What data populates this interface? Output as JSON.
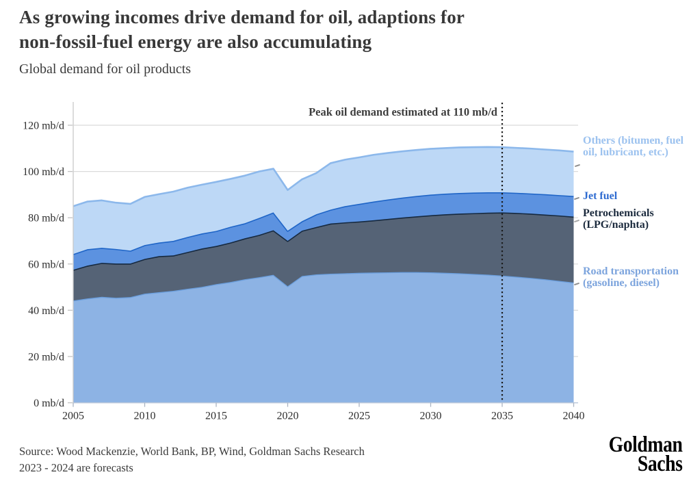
{
  "header": {
    "title": "As growing incomes drive demand for oil, adaptions for non-fossil-fuel energy are also accumulating"
  },
  "chart_data": {
    "type": "area",
    "stacked": true,
    "title": "Global demand for oil products",
    "unit": "mb/d",
    "xlabel": "",
    "ylabel": "mb/d",
    "ylim": [
      0,
      130
    ],
    "grid": true,
    "legend_position": "right",
    "x": [
      2005,
      2006,
      2007,
      2008,
      2009,
      2010,
      2011,
      2012,
      2013,
      2014,
      2015,
      2016,
      2017,
      2018,
      2019,
      2020,
      2021,
      2022,
      2023,
      2024,
      2025,
      2026,
      2027,
      2028,
      2029,
      2030,
      2031,
      2032,
      2033,
      2034,
      2035,
      2036,
      2037,
      2038,
      2039,
      2040
    ],
    "series": [
      {
        "name": "Road transportation (gasoline, diesel)",
        "fill_color": "#8DB3E4",
        "edge_color": "#6A9EDD",
        "label_color": "#7CA4DD",
        "values": [
          44.2,
          45.1,
          45.8,
          45.4,
          45.7,
          47.2,
          47.8,
          48.4,
          49.3,
          50.1,
          51.3,
          52.2,
          53.4,
          54.3,
          55.3,
          50.4,
          54.8,
          55.5,
          55.8,
          56.0,
          56.2,
          56.3,
          56.4,
          56.5,
          56.5,
          56.4,
          56.2,
          56.0,
          55.7,
          55.4,
          55.0,
          54.5,
          54.0,
          53.4,
          52.7,
          52.0
        ]
      },
      {
        "name": "Petrochemicals (LPG/naphta)",
        "fill_color": "#556376",
        "edge_color": "#16293F",
        "label_color": "#1B2A3D",
        "values": [
          13.3,
          14.2,
          14.7,
          14.8,
          14.5,
          15.0,
          15.6,
          15.3,
          15.9,
          16.6,
          16.5,
          17.1,
          17.7,
          18.3,
          19.3,
          19.6,
          19.6,
          20.5,
          21.7,
          22.0,
          22.2,
          22.6,
          23.1,
          23.6,
          24.1,
          24.7,
          25.3,
          25.8,
          26.3,
          26.8,
          27.3,
          27.6,
          27.8,
          28.0,
          28.3,
          28.5
        ]
      },
      {
        "name": "Jet fuel",
        "fill_color": "#5C92E0",
        "edge_color": "#1F65C7",
        "label_color": "#2E6BD0",
        "values": [
          6.8,
          7.1,
          6.5,
          6.3,
          5.6,
          6.0,
          5.9,
          6.3,
          6.5,
          6.5,
          6.5,
          6.8,
          6.5,
          7.3,
          7.7,
          4.4,
          4.1,
          5.5,
          6.0,
          7.0,
          7.6,
          8.1,
          8.4,
          8.6,
          8.8,
          8.9,
          8.9,
          8.9,
          8.9,
          8.8,
          8.7,
          8.7,
          8.7,
          8.8,
          8.8,
          8.9
        ]
      },
      {
        "name": "Others (bitumen, fuel oil, lubricant, etc.)",
        "fill_color": "#BDD8F6",
        "edge_color": "#8CB8EB",
        "label_color": "#9CC2EF",
        "values": [
          20.7,
          20.6,
          20.5,
          20.0,
          20.2,
          20.8,
          20.9,
          21.3,
          21.3,
          21.1,
          21.2,
          20.7,
          20.6,
          20.1,
          18.9,
          17.6,
          18.1,
          17.8,
          20.1,
          20.1,
          20.1,
          20.2,
          20.1,
          20.0,
          19.9,
          19.8,
          19.7,
          19.7,
          19.6,
          19.6,
          19.5,
          19.4,
          19.4,
          19.3,
          19.3,
          19.2
        ]
      }
    ],
    "y_ticks": [
      {
        "value": 0,
        "label": "0 mb/d"
      },
      {
        "value": 20,
        "label": "20 mb/d"
      },
      {
        "value": 40,
        "label": "40 mb/d"
      },
      {
        "value": 60,
        "label": "60 mb/d"
      },
      {
        "value": 80,
        "label": "80 mb/d"
      },
      {
        "value": 100,
        "label": "100 mb/d"
      },
      {
        "value": 120,
        "label": "120 mb/d"
      }
    ],
    "x_ticks": [
      {
        "value": 2005,
        "label": "2005"
      },
      {
        "value": 2010,
        "label": "2010"
      },
      {
        "value": 2015,
        "label": "2015"
      },
      {
        "value": 2020,
        "label": "2020"
      },
      {
        "value": 2025,
        "label": "2025"
      },
      {
        "value": 2030,
        "label": "2030"
      },
      {
        "value": 2035,
        "label": "2035"
      },
      {
        "value": 2040,
        "label": "2040"
      }
    ],
    "annotations": [
      {
        "text": "Peak oil demand estimated at 110 mb/d",
        "x": 2035,
        "style": "dotted-vertical-line"
      }
    ]
  },
  "footer": {
    "source_line": "Source: Wood Mackenzie, World Bank, BP, Wind, Goldman Sachs Research",
    "note_line": "2023 - 2024 are forecasts"
  },
  "logo": {
    "line1": "Goldman",
    "line2": "Sachs"
  }
}
